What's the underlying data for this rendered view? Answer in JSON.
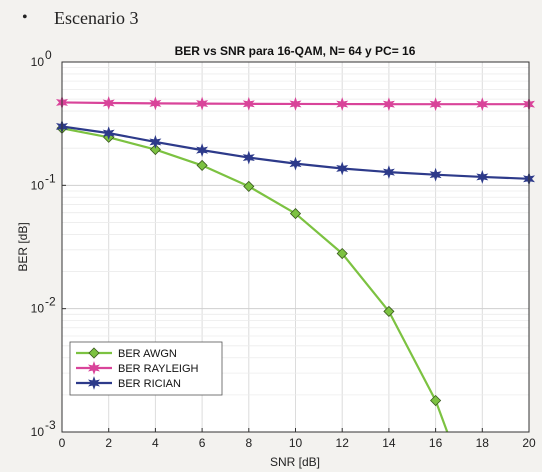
{
  "heading": {
    "bullet": "•",
    "text": "Escenario 3"
  },
  "chart_data": {
    "type": "line",
    "title": "BER vs SNR para 16-QAM, N= 64 y PC= 16",
    "xlabel": "SNR [dB]",
    "ylabel": "BER [dB]",
    "xlim": [
      0,
      20
    ],
    "ylim": [
      0.001,
      1
    ],
    "yscale": "log",
    "grid": true,
    "legend_position": "bottom-left",
    "x_ticks": [
      "0",
      "2",
      "4",
      "6",
      "8",
      "10",
      "12",
      "14",
      "16",
      "18",
      "20"
    ],
    "y_ticks": [
      {
        "value": 1,
        "base": "10",
        "exp": "0"
      },
      {
        "value": 0.1,
        "base": "10",
        "exp": "-1"
      },
      {
        "value": 0.01,
        "base": "10",
        "exp": "-2"
      },
      {
        "value": 0.001,
        "base": "10",
        "exp": "-3"
      }
    ],
    "x": [
      0,
      2,
      4,
      6,
      8,
      10,
      12,
      14,
      16,
      18,
      20
    ],
    "series": [
      {
        "name": "BER AWGN",
        "color": "#7cc241",
        "marker": "diamond",
        "x": [
          0,
          2,
          4,
          6,
          8,
          10,
          12,
          14,
          16,
          16.5
        ],
        "values": [
          0.29,
          0.245,
          0.195,
          0.145,
          0.098,
          0.059,
          0.028,
          0.0095,
          0.0018,
          0.001
        ]
      },
      {
        "name": "BER RAYLEIGH",
        "color": "#d9449a",
        "marker": "star",
        "x": [
          0,
          2,
          4,
          6,
          8,
          10,
          12,
          14,
          16,
          18,
          20
        ],
        "values": [
          0.47,
          0.465,
          0.462,
          0.46,
          0.458,
          0.457,
          0.456,
          0.455,
          0.455,
          0.455,
          0.455
        ]
      },
      {
        "name": "BER RICIAN",
        "color": "#2d3a8a",
        "marker": "star",
        "x": [
          0,
          2,
          4,
          6,
          8,
          10,
          12,
          14,
          16,
          18,
          20
        ],
        "values": [
          0.3,
          0.265,
          0.225,
          0.193,
          0.168,
          0.15,
          0.137,
          0.128,
          0.122,
          0.117,
          0.113
        ]
      }
    ]
  }
}
